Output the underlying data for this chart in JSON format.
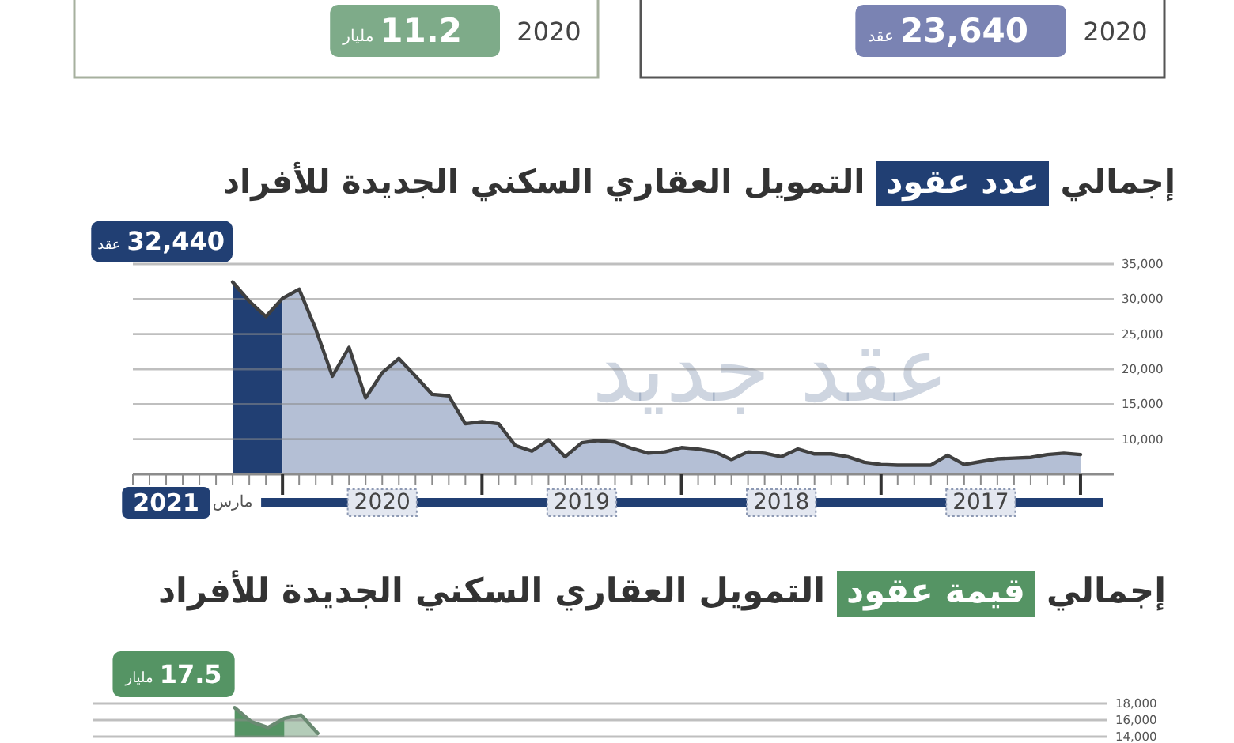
{
  "chart_data": [
    {
      "type": "other",
      "categories": [
        "2020",
        "2020"
      ],
      "values": [
        11.2,
        23640
      ],
      "value_labels": [
        "11.2 مليار",
        "23,640 عقد"
      ],
      "colors": [
        "#7eab89",
        "#7a83b3"
      ]
    },
    {
      "type": "area",
      "title": "إجمالي عدد عقود التمويل العقاري السكني الجديدة للأفراد",
      "annotations": [
        "عقد جديد"
      ],
      "xlim": [
        "2021-09",
        "2016-10"
      ],
      "xticks": [
        {
          "value": "2021-09",
          "label": null
        },
        {
          "value": "2021-08",
          "label": null
        },
        {
          "value": "2021-07",
          "label": "2021"
        },
        {
          "value": "2021-06",
          "label": null
        },
        {
          "value": "2021-05",
          "label": null
        },
        {
          "value": "2021-04",
          "label": null
        },
        {
          "value": "2021-03",
          "label": "مارس"
        },
        {
          "value": "2021-02",
          "label": null
        },
        {
          "value": "2021-01",
          "label": null
        },
        {
          "value": "2020-12",
          "label": null
        },
        {
          "value": "2020-11",
          "label": null
        },
        {
          "value": "2020-10",
          "label": null
        },
        {
          "value": "2020-09",
          "label": null
        },
        {
          "value": "2020-08",
          "label": null
        },
        {
          "value": "2020-07",
          "label": null
        },
        {
          "value": "2020-06",
          "label": "2020"
        },
        {
          "value": "2020-05",
          "label": null
        },
        {
          "value": "2020-04",
          "label": null
        },
        {
          "value": "2020-03",
          "label": null
        },
        {
          "value": "2020-02",
          "label": null
        },
        {
          "value": "2020-01",
          "label": null
        },
        {
          "value": "2019-12",
          "label": null
        },
        {
          "value": "2019-11",
          "label": null
        },
        {
          "value": "2019-10",
          "label": null
        },
        {
          "value": "2019-09",
          "label": null
        },
        {
          "value": "2019-08",
          "label": null
        },
        {
          "value": "2019-07",
          "label": null
        },
        {
          "value": "2019-06",
          "label": "2019"
        },
        {
          "value": "2019-05",
          "label": null
        },
        {
          "value": "2019-04",
          "label": null
        },
        {
          "value": "2019-03",
          "label": null
        },
        {
          "value": "2019-02",
          "label": null
        },
        {
          "value": "2019-01",
          "label": null
        },
        {
          "value": "2018-12",
          "label": null
        },
        {
          "value": "2018-11",
          "label": null
        },
        {
          "value": "2018-10",
          "label": null
        },
        {
          "value": "2018-09",
          "label": null
        },
        {
          "value": "2018-08",
          "label": null
        },
        {
          "value": "2018-07",
          "label": null
        },
        {
          "value": "2018-06",
          "label": "2018"
        },
        {
          "value": "2018-05",
          "label": null
        },
        {
          "value": "2018-04",
          "label": null
        },
        {
          "value": "2018-03",
          "label": null
        },
        {
          "value": "2018-02",
          "label": null
        },
        {
          "value": "2018-01",
          "label": null
        },
        {
          "value": "2017-12",
          "label": null
        },
        {
          "value": "2017-11",
          "label": null
        },
        {
          "value": "2017-10",
          "label": null
        },
        {
          "value": "2017-09",
          "label": null
        },
        {
          "value": "2017-08",
          "label": null
        },
        {
          "value": "2017-07",
          "label": null
        },
        {
          "value": "2017-06",
          "label": "2017"
        },
        {
          "value": "2017-05",
          "label": null
        },
        {
          "value": "2017-04",
          "label": null
        },
        {
          "value": "2017-03",
          "label": null
        },
        {
          "value": "2017-02",
          "label": null
        },
        {
          "value": "2017-01",
          "label": null
        },
        {
          "value": "2016-12",
          "label": null
        }
      ],
      "ylim": [
        5000,
        35000
      ],
      "yticks": [
        {
          "value": 10000,
          "label": "10,000"
        },
        {
          "value": 15000,
          "label": "15,000"
        },
        {
          "value": 20000,
          "label": "20,000"
        },
        {
          "value": 25000,
          "label": "25,000"
        },
        {
          "value": 30000,
          "label": "30,000"
        },
        {
          "value": 35000,
          "label": "35,000"
        }
      ],
      "grid": "y",
      "series": [
        {
          "type": "area",
          "color": "#213f73",
          "x": [
            "2021-03",
            "2021-02",
            "2021-01",
            "2020-12"
          ],
          "values": [
            32440,
            29700,
            27500,
            30100
          ],
          "value_labels": [
            "32,440 عقد",
            null,
            null,
            null
          ]
        },
        {
          "type": "area",
          "color": "#b4bfd5",
          "x": [
            "2020-12",
            "2020-11",
            "2020-10",
            "2020-09",
            "2020-08",
            "2020-07",
            "2020-06",
            "2020-05",
            "2020-04",
            "2020-03",
            "2020-02",
            "2020-01",
            "2019-12",
            "2019-11",
            "2019-10",
            "2019-09",
            "2019-08",
            "2019-07",
            "2019-06",
            "2019-05",
            "2019-04",
            "2019-03",
            "2019-02",
            "2019-01",
            "2018-12",
            "2018-11",
            "2018-10",
            "2018-09",
            "2018-08",
            "2018-07",
            "2018-06",
            "2018-05",
            "2018-04",
            "2018-03",
            "2018-02",
            "2018-01",
            "2017-12",
            "2017-11",
            "2017-10",
            "2017-09",
            "2017-08",
            "2017-07",
            "2017-06",
            "2017-05",
            "2017-04",
            "2017-03",
            "2017-02",
            "2017-01",
            "2016-12"
          ],
          "values": [
            30100,
            31400,
            25700,
            19000,
            23100,
            15900,
            19500,
            21500,
            19000,
            16400,
            16200,
            12200,
            12500,
            12200,
            9100,
            8300,
            9900,
            7500,
            9500,
            9800,
            9600,
            8700,
            8000,
            8200,
            8800,
            8600,
            8200,
            7100,
            8200,
            8000,
            7500,
            8600,
            7900,
            7900,
            7500,
            6700,
            6400,
            6300,
            6300,
            6300,
            7700,
            6400,
            6800,
            7200,
            7300,
            7400,
            7800,
            8000,
            7800
          ]
        },
        {
          "type": "line",
          "color": "#404040",
          "x": [
            "2021-03",
            "2021-02",
            "2021-01",
            "2020-12",
            "2020-11",
            "2020-10",
            "2020-09",
            "2020-08",
            "2020-07",
            "2020-06",
            "2020-05",
            "2020-04",
            "2020-03",
            "2020-02",
            "2020-01",
            "2019-12",
            "2019-11",
            "2019-10",
            "2019-09",
            "2019-08",
            "2019-07",
            "2019-06",
            "2019-05",
            "2019-04",
            "2019-03",
            "2019-02",
            "2019-01",
            "2018-12",
            "2018-11",
            "2018-10",
            "2018-09",
            "2018-08",
            "2018-07",
            "2018-06",
            "2018-05",
            "2018-04",
            "2018-03",
            "2018-02",
            "2018-01",
            "2017-12",
            "2017-11",
            "2017-10",
            "2017-09",
            "2017-08",
            "2017-07",
            "2017-06",
            "2017-05",
            "2017-04",
            "2017-03",
            "2017-02",
            "2017-01",
            "2016-12"
          ],
          "values": [
            32440,
            29700,
            27500,
            30100,
            31400,
            25700,
            19000,
            23100,
            15900,
            19500,
            21500,
            19000,
            16400,
            16200,
            12200,
            12500,
            12200,
            9100,
            8300,
            9900,
            7500,
            9500,
            9800,
            9600,
            8700,
            8000,
            8200,
            8800,
            8600,
            8200,
            7100,
            8200,
            8000,
            7500,
            8600,
            7900,
            7900,
            7500,
            6700,
            6400,
            6300,
            6300,
            6300,
            7700,
            6400,
            6800,
            7200,
            7300,
            7400,
            7800,
            8000,
            7800
          ]
        }
      ]
    },
    {
      "type": "area",
      "title": "إجمالي قيمة عقود التمويل العقاري السكني الجديدة للأفراد",
      "annotations": [
        "17.5 مليار"
      ],
      "categories": [
        null,
        null,
        null,
        null,
        null,
        null,
        null,
        null,
        null,
        null,
        null,
        null,
        null,
        null,
        null,
        null,
        null,
        null,
        null,
        null,
        null,
        null,
        null,
        null,
        null,
        null,
        null,
        null,
        null,
        null,
        null,
        null,
        null,
        null,
        null,
        null,
        null,
        null,
        null,
        null,
        null,
        null,
        null,
        null,
        null,
        null,
        null,
        null,
        null,
        null,
        null,
        null,
        null,
        null,
        null,
        null,
        null,
        null,
        null,
        null,
        null
      ],
      "ylim": [
        14000,
        18000
      ],
      "yticks": [
        {
          "value": 14000,
          "label": "14,000"
        },
        {
          "value": 16000,
          "label": "16,000"
        },
        {
          "value": 18000,
          "label": "18,000"
        }
      ],
      "grid": "y",
      "tick_labels": "y",
      "series": [
        {
          "type": "area",
          "color": "#559464",
          "values": [
            null,
            null,
            null,
            null,
            null,
            null,
            null,
            null,
            17500,
            15800,
            15100,
            16200,
            null,
            null,
            null,
            null,
            null,
            null,
            null,
            null,
            null,
            null,
            null,
            null,
            null,
            null,
            null,
            null,
            null,
            null,
            null,
            null,
            null,
            null,
            null,
            null,
            null,
            null,
            null,
            null,
            null,
            null,
            null,
            null,
            null,
            null,
            null,
            null,
            null,
            null,
            null,
            null,
            null,
            null,
            null,
            null,
            null,
            null,
            null,
            null,
            null
          ]
        },
        {
          "type": "area",
          "color": "#b3ccb8",
          "values": [
            null,
            null,
            null,
            null,
            null,
            null,
            null,
            null,
            null,
            null,
            null,
            16200,
            16600,
            14400,
            null,
            null,
            null,
            null,
            null,
            null,
            null,
            null,
            null,
            null,
            null,
            null,
            null,
            null,
            null,
            null,
            null,
            null,
            null,
            null,
            null,
            null,
            null,
            null,
            null,
            null,
            null,
            null,
            null,
            null,
            null,
            null,
            null,
            null,
            null,
            null,
            null,
            null,
            null,
            null,
            null,
            null,
            null,
            null,
            null,
            null,
            null
          ]
        },
        {
          "type": "line",
          "color": "#6a8a72",
          "values": [
            null,
            null,
            null,
            null,
            null,
            null,
            null,
            null,
            17500,
            15800,
            15100,
            16200,
            16600,
            14400,
            null,
            null,
            null,
            null,
            null,
            null,
            null,
            null,
            null,
            null,
            null,
            null,
            null,
            null,
            null,
            null,
            null,
            null,
            null,
            null,
            null,
            null,
            null,
            null,
            null,
            null,
            null,
            null,
            null,
            null,
            null,
            null,
            null,
            null,
            null,
            null,
            null,
            null,
            null,
            null,
            null,
            null,
            null,
            null,
            null,
            null,
            null
          ]
        }
      ]
    }
  ]
}
